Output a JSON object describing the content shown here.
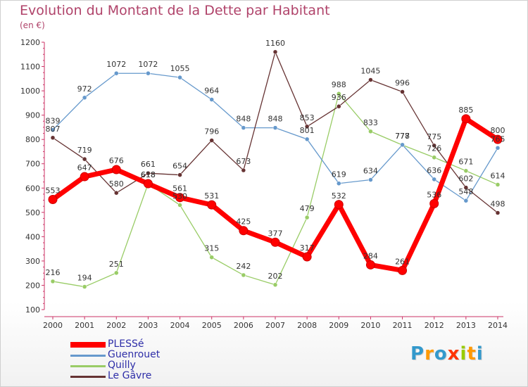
{
  "chart_data": {
    "type": "line",
    "title": "Evolution du Montant de la Dette par Habitant",
    "subtitle": "(en €)",
    "x": [
      "2000",
      "2001",
      "2002",
      "2003",
      "2004",
      "2005",
      "2006",
      "2007",
      "2008",
      "2009",
      "2010",
      "2011",
      "2012",
      "2013",
      "2014"
    ],
    "y_ticks": [
      "100",
      "200",
      "300",
      "400",
      "500",
      "600",
      "700",
      "800",
      "900",
      "1000",
      "1100",
      "1200"
    ],
    "ylim": [
      100,
      1200
    ],
    "grid": false,
    "legend_position": "bottom-left",
    "series": [
      {
        "name": "Quilly",
        "color": "#99cc66",
        "values": [
          216,
          194,
          251,
          618,
          530,
          315,
          242,
          202,
          479,
          988,
          833,
          777,
          726,
          671,
          614
        ]
      },
      {
        "name": "Guenrouet",
        "color": "#6699cc",
        "values": [
          839,
          972,
          1072,
          1072,
          1055,
          964,
          848,
          848,
          801,
          619,
          634,
          778,
          636,
          548,
          765
        ]
      },
      {
        "name": "Le Gâvre",
        "color": "#663333",
        "values": [
          807,
          719,
          580,
          661,
          654,
          796,
          673,
          1160,
          853,
          936,
          1045,
          996,
          775,
          602,
          498
        ]
      },
      {
        "name": "PLESSé",
        "color": "#ff0000",
        "values": [
          553,
          647,
          676,
          618,
          561,
          531,
          425,
          377,
          317,
          532,
          284,
          261,
          536,
          885,
          800
        ]
      }
    ]
  },
  "legend": [
    {
      "label": "PLESSé",
      "color": "#ff0000"
    },
    {
      "label": "Guenrouet",
      "color": "#6699cc"
    },
    {
      "label": "Quilly",
      "color": "#99cc66"
    },
    {
      "label": "Le Gâvre",
      "color": "#663333"
    }
  ],
  "brand": {
    "letters": [
      "P",
      "r",
      "o",
      "x",
      "i",
      "t",
      "i"
    ],
    "colors": [
      "#3399cc",
      "#ff9900",
      "#3399cc",
      "#ff3300",
      "#99cc00",
      "#ff9900",
      "#3399cc"
    ]
  }
}
